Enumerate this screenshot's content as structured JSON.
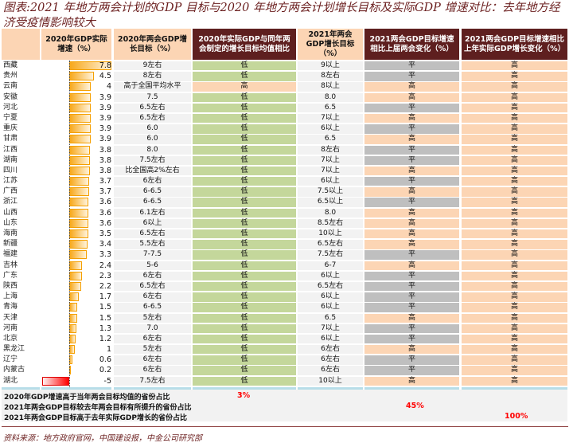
{
  "title": "图表:2021 年地方两会计划的GDP 目标与2020 年地方两会计划增长目标及实际GDP 增速对比：去年地方经济受疫情影响较大",
  "headers": [
    "",
    "2020年GDP实际增速（%）",
    "2020年两会GDP增长目标（%）",
    "2020年实际GDP与同年两会制定的增长目标均值相比",
    "2021年两会GDP增长目标（%）",
    "2021两会GDP目标增速相比上届两会变化（%）",
    "2021两会GDP目标增速相比上年实际GDP增长变化（%）"
  ],
  "colors": {
    "green": "#c4d79b",
    "peach": "#fcd5b4",
    "gray": "#bfbfbf",
    "maroon": "#5e1f1f",
    "red": "#ff0000"
  },
  "rows": [
    [
      "西藏",
      7.8,
      "9左右",
      "低",
      "9以上",
      "平",
      "高"
    ],
    [
      "贵州",
      4.5,
      "8左右",
      "低",
      "8左右",
      "平",
      "高"
    ],
    [
      "云南",
      4,
      "高于全国平均水平",
      "高",
      "8以上",
      "高",
      "高"
    ],
    [
      "安徽",
      3.9,
      "7.5",
      "低",
      "8.0",
      "高",
      "高"
    ],
    [
      "河北",
      3.9,
      "6.5左右",
      "低",
      "6.5",
      "平",
      "高"
    ],
    [
      "宁夏",
      3.9,
      "6.5左右",
      "低",
      "7以上",
      "高",
      "高"
    ],
    [
      "重庆",
      3.9,
      "6.0",
      "低",
      "6以上",
      "平",
      "高"
    ],
    [
      "甘肃",
      3.9,
      "6.0",
      "低",
      "6.5",
      "高",
      "高"
    ],
    [
      "江西",
      3.8,
      "8.0",
      "低",
      "8左右",
      "平",
      "高"
    ],
    [
      "湖南",
      3.8,
      "7.5左右",
      "低",
      "7以上",
      "平",
      "高"
    ],
    [
      "四川",
      3.8,
      "比全国高2%左右",
      "低",
      "7以上",
      "高",
      "高"
    ],
    [
      "江苏",
      3.7,
      "6左右",
      "低",
      "6以上",
      "平",
      "高"
    ],
    [
      "广西",
      3.7,
      "6-6.5",
      "低",
      "7.5以上",
      "高",
      "高"
    ],
    [
      "浙江",
      3.6,
      "6-6.5",
      "低",
      "6.5以上",
      "平",
      "高"
    ],
    [
      "山西",
      3.6,
      "6.1左右",
      "低",
      "8.0",
      "高",
      "高"
    ],
    [
      "山东",
      3.6,
      "6以上",
      "低",
      "8.5左右",
      "高",
      "高"
    ],
    [
      "海南",
      3.5,
      "6.5左右",
      "低",
      "10以上",
      "高",
      "高"
    ],
    [
      "新疆",
      3.4,
      "5.5左右",
      "低",
      "6.5左右",
      "高",
      "高"
    ],
    [
      "福建",
      3.3,
      "7-7.5",
      "低",
      "7.5左右",
      "平",
      "高"
    ],
    [
      "吉林",
      2.4,
      "5-6",
      "低",
      "6-7",
      "高",
      "高"
    ],
    [
      "广东",
      2.3,
      "6左右",
      "低",
      "6以上",
      "平",
      "高"
    ],
    [
      "陕西",
      2.2,
      "6.5左右",
      "低",
      "6.5左右",
      "平",
      "高"
    ],
    [
      "上海",
      1.7,
      "6左右",
      "低",
      "6以上",
      "平",
      "高"
    ],
    [
      "青海",
      1.5,
      "6-6.5",
      "低",
      "6以上",
      "平",
      "高"
    ],
    [
      "天津",
      1.5,
      "5左右",
      "低",
      "6.5",
      "高",
      "高"
    ],
    [
      "河南",
      1.3,
      "7.0",
      "低",
      "7以上",
      "平",
      "高"
    ],
    [
      "北京",
      1.2,
      "6左右",
      "低",
      "6以上",
      "平",
      "高"
    ],
    [
      "黑龙江",
      1,
      "5左右",
      "低",
      "6左右",
      "高",
      "高"
    ],
    [
      "辽宁",
      0.6,
      "6左右",
      "低",
      "6左右",
      "平",
      "高"
    ],
    [
      "内蒙古",
      0.2,
      "6左右",
      "低",
      "6左右",
      "平",
      "高"
    ],
    [
      "湖北",
      -5,
      "7.5左右",
      "低",
      "10以上",
      "高",
      "高"
    ]
  ],
  "footer": [
    {
      "label": "2020年GDP增速高于当年两会目标均值的省份占比",
      "value": "3%"
    },
    {
      "label": "2021年两会GDP目标较去年两会目标有所提升的省份占比",
      "value": "45%"
    },
    {
      "label": "2021年两会GDP目标高于去年实际GDP增长的省份占比",
      "value": "100%"
    }
  ],
  "source": "资料来源：地方政府官网，中国建设报，中金公司研究部"
}
